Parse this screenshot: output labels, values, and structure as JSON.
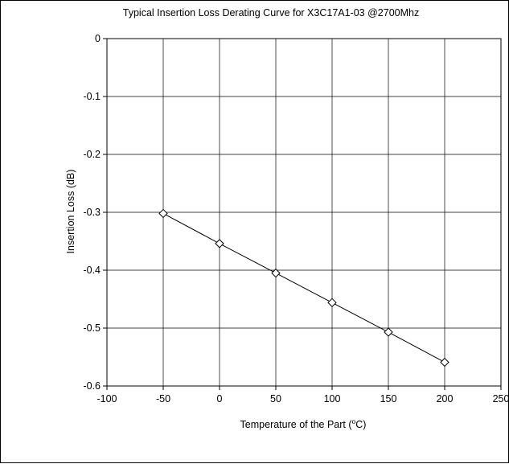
{
  "chart_data": {
    "type": "line",
    "title": "Typical Insertion Loss Derating Curve for X3C17A1-03 @2700Mhz",
    "xlabel": "Temperature of the Part (",
    "xlabel_unit_super": "o",
    "xlabel_unit": "C)",
    "ylabel": "Insertion Loss (dB)",
    "xlim": [
      -100,
      250
    ],
    "ylim": [
      -0.6,
      0
    ],
    "x_ticks": [
      -100,
      -50,
      0,
      50,
      100,
      150,
      200,
      250
    ],
    "y_ticks": [
      0,
      -0.1,
      -0.2,
      -0.3,
      -0.4,
      -0.5,
      -0.6
    ],
    "x_tick_labels": [
      "-100",
      "-50",
      "0",
      "50",
      "100",
      "150",
      "200",
      "250"
    ],
    "y_tick_labels": [
      "0",
      "-0.1",
      "-0.2",
      "-0.3",
      "-0.4",
      "-0.5",
      "-0.6"
    ],
    "grid": true,
    "legend": false,
    "marker": "diamond",
    "line_color": "#000000",
    "series": [
      {
        "x": [
          -50,
          0,
          50,
          100,
          150,
          200
        ],
        "y": [
          -0.302,
          -0.354,
          -0.405,
          -0.456,
          -0.507,
          -0.559
        ]
      }
    ]
  }
}
